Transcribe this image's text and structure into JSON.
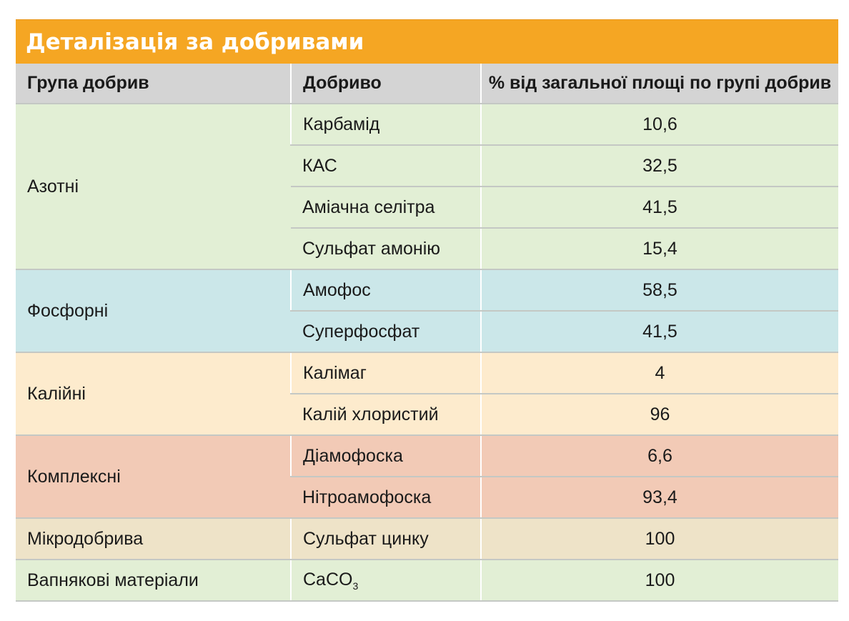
{
  "title": "Деталізація за добривами",
  "headers": {
    "group": "Група добрив",
    "fertilizer": "Добриво",
    "percent": "% від загальної площі по групі добрив"
  },
  "groups": [
    {
      "name": "Азотні",
      "color": "#E2EFD5",
      "items": [
        {
          "fertilizer": "Карбамід",
          "percent": "10,6"
        },
        {
          "fertilizer": "КАС",
          "percent": "32,5"
        },
        {
          "fertilizer": "Аміачна селітра",
          "percent": "41,5"
        },
        {
          "fertilizer": "Сульфат амонію",
          "percent": "15,4"
        }
      ]
    },
    {
      "name": "Фосфорні",
      "color": "#CBE7E9",
      "items": [
        {
          "fertilizer": "Амофос",
          "percent": "58,5"
        },
        {
          "fertilizer": "Суперфосфат",
          "percent": "41,5"
        }
      ]
    },
    {
      "name": "Калійні",
      "color": "#FDEBCD",
      "items": [
        {
          "fertilizer": "Калімаг",
          "percent": "4"
        },
        {
          "fertilizer": "Калій хлористий",
          "percent": "96"
        }
      ]
    },
    {
      "name": "Комплексні",
      "color": "#F2CAB6",
      "items": [
        {
          "fertilizer": "Діамофоска",
          "percent": "6,6"
        },
        {
          "fertilizer": "Нітроамофоска",
          "percent": "93,4"
        }
      ]
    },
    {
      "name": "Мікродобрива",
      "color": "#EEE3C8",
      "items": [
        {
          "fertilizer": "Сульфат цинку",
          "percent": "100"
        }
      ]
    },
    {
      "name": "Вапнякові матеріали",
      "color": "#E2EFD5",
      "items": [
        {
          "fertilizer_main": "CaCO",
          "fertilizer_sub": "3",
          "percent": "100"
        }
      ]
    }
  ],
  "colors": {
    "title_bg": "#F5A623",
    "header_bg": "#D4D4D4"
  }
}
